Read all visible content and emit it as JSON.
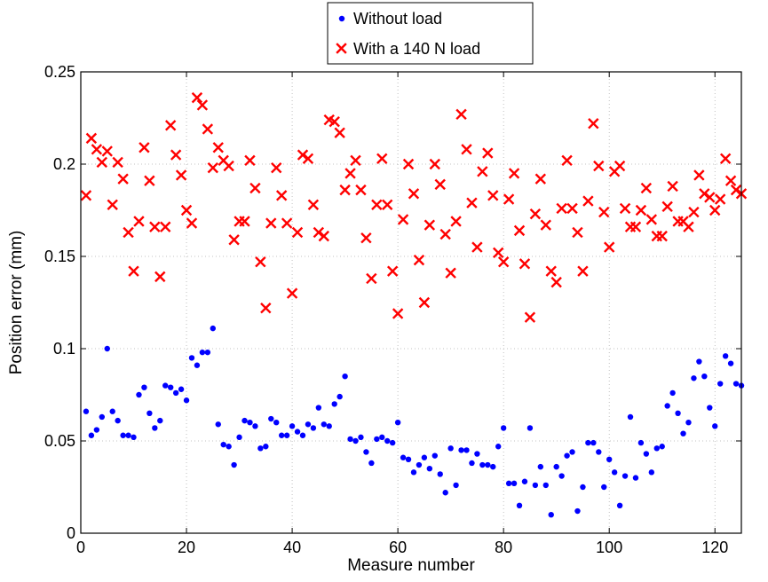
{
  "chart_data": {
    "type": "scatter",
    "xlabel": "Measure number",
    "ylabel": "Position error (mm)",
    "xlim": [
      0,
      125
    ],
    "ylim": [
      0,
      0.25
    ],
    "x_ticks": [
      0,
      20,
      40,
      60,
      80,
      100,
      120
    ],
    "y_ticks": [
      0,
      0.05,
      0.1,
      0.15,
      0.2,
      0.25
    ],
    "y_tick_labels": [
      "0",
      "0.05",
      "0.1",
      "0.15",
      "0.2",
      "0.25"
    ],
    "grid": true,
    "legend_position": "top-center",
    "series": [
      {
        "name": "Without load",
        "marker": "dot",
        "color": "#0000ff",
        "x": [
          1,
          2,
          3,
          4,
          5,
          6,
          7,
          8,
          9,
          10,
          11,
          12,
          13,
          14,
          15,
          16,
          17,
          18,
          19,
          20,
          21,
          22,
          23,
          24,
          25,
          26,
          27,
          28,
          29,
          30,
          31,
          32,
          33,
          34,
          35,
          36,
          37,
          38,
          39,
          40,
          41,
          42,
          43,
          44,
          45,
          46,
          47,
          48,
          49,
          50,
          51,
          52,
          53,
          54,
          55,
          56,
          57,
          58,
          59,
          60,
          61,
          62,
          63,
          64,
          65,
          66,
          67,
          68,
          69,
          70,
          71,
          72,
          73,
          74,
          75,
          76,
          77,
          78,
          79,
          80,
          81,
          82,
          83,
          84,
          85,
          86,
          87,
          88,
          89,
          90,
          91,
          92,
          93,
          94,
          95,
          96,
          97,
          98,
          99,
          100,
          101,
          102,
          103,
          104,
          105,
          106,
          107,
          108,
          109,
          110,
          111,
          112,
          113,
          114,
          115,
          116,
          117,
          118,
          119,
          120,
          121,
          122,
          123,
          124,
          125
        ],
        "y": [
          0.066,
          0.053,
          0.056,
          0.063,
          0.1,
          0.066,
          0.061,
          0.053,
          0.053,
          0.052,
          0.075,
          0.079,
          0.065,
          0.057,
          0.061,
          0.08,
          0.079,
          0.076,
          0.078,
          0.072,
          0.095,
          0.091,
          0.098,
          0.098,
          0.111,
          0.059,
          0.048,
          0.047,
          0.037,
          0.052,
          0.061,
          0.06,
          0.058,
          0.046,
          0.047,
          0.062,
          0.06,
          0.053,
          0.053,
          0.058,
          0.055,
          0.053,
          0.059,
          0.057,
          0.068,
          0.059,
          0.058,
          0.07,
          0.074,
          0.085,
          0.051,
          0.05,
          0.052,
          0.044,
          0.038,
          0.051,
          0.052,
          0.05,
          0.049,
          0.06,
          0.041,
          0.04,
          0.033,
          0.037,
          0.041,
          0.035,
          0.042,
          0.032,
          0.022,
          0.046,
          0.026,
          0.045,
          0.045,
          0.038,
          0.043,
          0.037,
          0.037,
          0.036,
          0.047,
          0.057,
          0.027,
          0.027,
          0.015,
          0.028,
          0.057,
          0.026,
          0.036,
          0.026,
          0.01,
          0.036,
          0.031,
          0.042,
          0.044,
          0.012,
          0.025,
          0.049,
          0.049,
          0.044,
          0.025,
          0.04,
          0.033,
          0.015,
          0.031,
          0.063,
          0.03,
          0.049,
          0.043,
          0.033,
          0.046,
          0.047,
          0.069,
          0.076,
          0.065,
          0.054,
          0.06,
          0.084,
          0.093,
          0.085,
          0.068,
          0.058,
          0.081,
          0.096,
          0.092,
          0.081,
          0.08
        ]
      },
      {
        "name": "With a 140 N load",
        "marker": "x",
        "color": "#ff0000",
        "x": [
          1,
          2,
          3,
          4,
          5,
          6,
          7,
          8,
          9,
          10,
          11,
          12,
          13,
          14,
          15,
          16,
          17,
          18,
          19,
          20,
          21,
          22,
          23,
          24,
          25,
          26,
          27,
          28,
          29,
          30,
          31,
          32,
          33,
          34,
          35,
          36,
          37,
          38,
          39,
          40,
          41,
          42,
          43,
          44,
          45,
          46,
          47,
          48,
          49,
          50,
          51,
          52,
          53,
          54,
          55,
          56,
          57,
          58,
          59,
          60,
          61,
          62,
          63,
          64,
          65,
          66,
          67,
          68,
          69,
          70,
          71,
          72,
          73,
          74,
          75,
          76,
          77,
          78,
          79,
          80,
          81,
          82,
          83,
          84,
          85,
          86,
          87,
          88,
          89,
          90,
          91,
          92,
          93,
          94,
          95,
          96,
          97,
          98,
          99,
          100,
          101,
          102,
          103,
          104,
          105,
          106,
          107,
          108,
          109,
          110,
          111,
          112,
          113,
          114,
          115,
          116,
          117,
          118,
          119,
          120,
          121,
          122,
          123,
          124,
          125
        ],
        "y": [
          0.183,
          0.214,
          0.208,
          0.201,
          0.207,
          0.178,
          0.201,
          0.192,
          0.163,
          0.142,
          0.169,
          0.209,
          0.191,
          0.166,
          0.139,
          0.166,
          0.221,
          0.205,
          0.194,
          0.175,
          0.168,
          0.236,
          0.232,
          0.219,
          0.198,
          0.209,
          0.202,
          0.199,
          0.159,
          0.169,
          0.169,
          0.202,
          0.187,
          0.147,
          0.122,
          0.168,
          0.198,
          0.183,
          0.168,
          0.13,
          0.163,
          0.205,
          0.203,
          0.178,
          0.163,
          0.161,
          0.224,
          0.223,
          0.217,
          0.186,
          0.195,
          0.202,
          0.186,
          0.16,
          0.138,
          0.178,
          0.203,
          0.178,
          0.142,
          0.119,
          0.17,
          0.2,
          0.184,
          0.148,
          0.125,
          0.167,
          0.2,
          0.189,
          0.162,
          0.141,
          0.169,
          0.227,
          0.208,
          0.179,
          0.155,
          0.196,
          0.206,
          0.183,
          0.152,
          0.147,
          0.181,
          0.195,
          0.164,
          0.146,
          0.117,
          0.173,
          0.192,
          0.167,
          0.142,
          0.136,
          0.176,
          0.202,
          0.176,
          0.163,
          0.142,
          0.18,
          0.222,
          0.199,
          0.174,
          0.155,
          0.196,
          0.199,
          0.176,
          0.166,
          0.166,
          0.175,
          0.187,
          0.17,
          0.161,
          0.161,
          0.177,
          0.188,
          0.169,
          0.169,
          0.166,
          0.174,
          0.194,
          0.184,
          0.182,
          0.175,
          0.181,
          0.203,
          0.191,
          0.186,
          0.184
        ]
      }
    ]
  }
}
